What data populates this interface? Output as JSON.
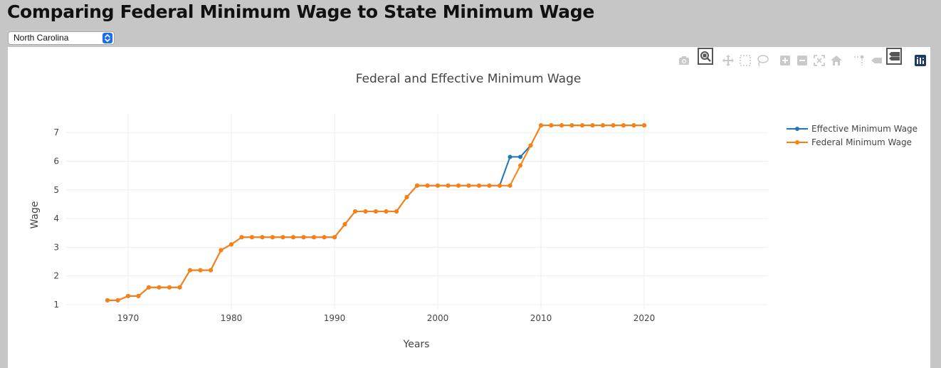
{
  "page": {
    "title": "Comparing Federal Minimum Wage to State Minimum Wage"
  },
  "state_selector": {
    "selected": "North Carolina"
  },
  "modebar": {
    "buttons": [
      "camera-icon",
      "zoom-icon",
      "pan-icon",
      "box-select-icon",
      "lasso-select-icon",
      "zoom-in-icon",
      "zoom-out-icon",
      "autoscale-icon",
      "reset-axes-icon",
      "spike-lines-icon",
      "hover-closest-icon",
      "hover-compare-icon",
      "plotly-logo-icon"
    ],
    "active": [
      "zoom-icon",
      "hover-compare-icon"
    ],
    "icon_color": "#c9c9c9",
    "active_color": "#555555"
  },
  "chart_data": {
    "type": "line",
    "title": "Federal and Effective Minimum Wage",
    "xlabel": "Years",
    "ylabel": "Wage",
    "xlim": [
      1964,
      2032
    ],
    "ylim": [
      0.85,
      7.65
    ],
    "xticks": [
      1970,
      1980,
      1990,
      2000,
      2010,
      2020
    ],
    "yticks": [
      1,
      2,
      3,
      4,
      5,
      6,
      7
    ],
    "grid": true,
    "legend_position": "top-right",
    "x": [
      1968,
      1969,
      1970,
      1971,
      1972,
      1973,
      1974,
      1975,
      1976,
      1977,
      1978,
      1979,
      1980,
      1981,
      1982,
      1983,
      1984,
      1985,
      1986,
      1987,
      1988,
      1989,
      1990,
      1991,
      1992,
      1993,
      1994,
      1995,
      1996,
      1997,
      1998,
      1999,
      2000,
      2001,
      2002,
      2003,
      2004,
      2005,
      2006,
      2007,
      2008,
      2009,
      2010,
      2011,
      2012,
      2013,
      2014,
      2015,
      2016,
      2017,
      2018,
      2019,
      2020
    ],
    "series": [
      {
        "name": "Effective Minimum Wage",
        "color": "#1f77b4",
        "values": [
          1.15,
          1.15,
          1.3,
          1.3,
          1.6,
          1.6,
          1.6,
          1.6,
          2.2,
          2.2,
          2.2,
          2.9,
          3.1,
          3.35,
          3.35,
          3.35,
          3.35,
          3.35,
          3.35,
          3.35,
          3.35,
          3.35,
          3.35,
          3.8,
          4.25,
          4.25,
          4.25,
          4.25,
          4.25,
          4.75,
          5.15,
          5.15,
          5.15,
          5.15,
          5.15,
          5.15,
          5.15,
          5.15,
          5.15,
          6.15,
          6.15,
          6.55,
          7.25,
          7.25,
          7.25,
          7.25,
          7.25,
          7.25,
          7.25,
          7.25,
          7.25,
          7.25,
          7.25
        ]
      },
      {
        "name": "Federal Minimum Wage",
        "color": "#ff7f0e",
        "values": [
          1.15,
          1.15,
          1.3,
          1.3,
          1.6,
          1.6,
          1.6,
          1.6,
          2.2,
          2.2,
          2.2,
          2.9,
          3.1,
          3.35,
          3.35,
          3.35,
          3.35,
          3.35,
          3.35,
          3.35,
          3.35,
          3.35,
          3.35,
          3.8,
          4.25,
          4.25,
          4.25,
          4.25,
          4.25,
          4.75,
          5.15,
          5.15,
          5.15,
          5.15,
          5.15,
          5.15,
          5.15,
          5.15,
          5.15,
          5.15,
          5.85,
          6.55,
          7.25,
          7.25,
          7.25,
          7.25,
          7.25,
          7.25,
          7.25,
          7.25,
          7.25,
          7.25,
          7.25
        ]
      }
    ]
  }
}
